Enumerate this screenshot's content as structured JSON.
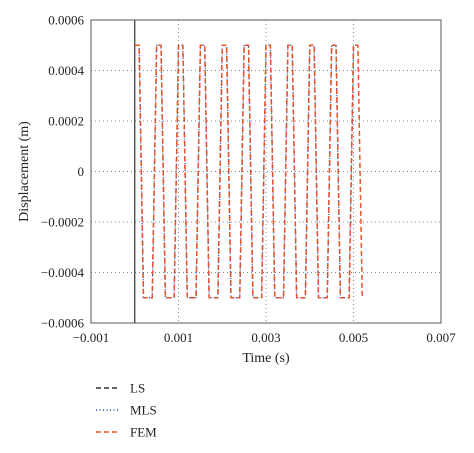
{
  "chart_data": {
    "type": "line",
    "xlabel": "Time (s)",
    "ylabel": "Displacement (m)",
    "xlim": [
      -0.001,
      0.007
    ],
    "ylim": [
      -0.0006,
      0.0006
    ],
    "x_ticks": [
      -0.001,
      0.001,
      0.003,
      0.005,
      0.007
    ],
    "x_tick_labels": [
      "−0.001",
      "0.001",
      "0.003",
      "0.005",
      "0.007"
    ],
    "y_ticks": [
      -0.0006,
      -0.0004,
      -0.0002,
      0,
      0.0002,
      0.0004,
      0.0006
    ],
    "y_tick_labels": [
      "−0.0006",
      "−0.0004",
      "−0.0002",
      "0",
      "0.0002",
      "0.0004",
      "0.0006"
    ],
    "grid": true,
    "legend_position": "bottom-left",
    "series": [
      {
        "name": "LS",
        "color": "#333333",
        "dash": "dashed",
        "x": [
          0,
          0.0001,
          0.0002,
          0.0004,
          0.0005,
          0.0006,
          0.0007,
          0.0009,
          0.001,
          0.0011,
          0.0012,
          0.0014,
          0.0015,
          0.0016,
          0.0017,
          0.0019,
          0.002,
          0.0021,
          0.0022,
          0.0024,
          0.0025,
          0.0026,
          0.0027,
          0.0029,
          0.003,
          0.0031,
          0.0032,
          0.0034,
          0.0035,
          0.0036,
          0.0037,
          0.0039,
          0.004,
          0.0041,
          0.0042,
          0.0044,
          0.0045,
          0.0046,
          0.0047,
          0.0049,
          0.005,
          0.0051
        ],
        "y": [
          0.0005,
          0.0005,
          -0.0005,
          -0.0005,
          0.0005,
          0.0005,
          -0.0005,
          -0.0005,
          0.0005,
          0.0005,
          -0.0005,
          -0.0005,
          0.0005,
          0.0005,
          -0.0005,
          -0.0005,
          0.0005,
          0.0005,
          -0.0005,
          -0.0005,
          0.0005,
          0.0005,
          -0.0005,
          -0.0005,
          0.0005,
          0.0005,
          -0.0005,
          -0.0005,
          0.0005,
          0.0005,
          -0.0005,
          -0.0005,
          0.0005,
          0.0005,
          -0.0005,
          -0.0005,
          0.0005,
          0.0005,
          -0.0005,
          -0.0005,
          0.0005,
          0.0005
        ]
      },
      {
        "name": "MLS",
        "color": "#1f4fbf",
        "dash": "dotted",
        "x": [
          0,
          0.0001,
          0.0002,
          0.0004,
          0.0005,
          0.0006,
          0.0007,
          0.0009,
          0.001,
          0.0011,
          0.0012,
          0.0014,
          0.0015,
          0.0016,
          0.0017,
          0.0019,
          0.002,
          0.0021,
          0.0022,
          0.0024,
          0.0025,
          0.0026,
          0.0027,
          0.0029,
          0.003,
          0.0031,
          0.0032,
          0.0034,
          0.0035,
          0.0036,
          0.0037,
          0.0039,
          0.004,
          0.0041,
          0.0042,
          0.0044,
          0.0045,
          0.0046,
          0.0047,
          0.0049,
          0.005,
          0.0051
        ],
        "y": [
          0.0005,
          0.0005,
          -0.0005,
          -0.0005,
          0.0005,
          0.0005,
          -0.0005,
          -0.0005,
          0.0005,
          0.0005,
          -0.0005,
          -0.0005,
          0.0005,
          0.0005,
          -0.0005,
          -0.0005,
          0.0005,
          0.0005,
          -0.0005,
          -0.0005,
          0.0005,
          0.0005,
          -0.0005,
          -0.0005,
          0.0005,
          0.0005,
          -0.0005,
          -0.0005,
          0.0005,
          0.0005,
          -0.0005,
          -0.0005,
          0.0005,
          0.0005,
          -0.0005,
          -0.0005,
          0.0005,
          0.0005,
          -0.0005,
          -0.0005,
          0.0005,
          0.0005
        ]
      },
      {
        "name": "FEM",
        "color": "#e8532b",
        "dash": "dashed",
        "x": [
          0,
          0.0001,
          0.0002,
          0.0004,
          0.0005,
          0.0006,
          0.0007,
          0.0009,
          0.001,
          0.0011,
          0.0012,
          0.0014,
          0.0015,
          0.0016,
          0.0017,
          0.0019,
          0.002,
          0.0021,
          0.0022,
          0.0024,
          0.0025,
          0.0026,
          0.0027,
          0.0029,
          0.003,
          0.0031,
          0.0032,
          0.0034,
          0.0035,
          0.0036,
          0.0037,
          0.0039,
          0.004,
          0.0041,
          0.0042,
          0.0044,
          0.0045,
          0.0046,
          0.0047,
          0.0049,
          0.005,
          0.0051,
          0.0052
        ],
        "y": [
          0.0005,
          0.0005,
          -0.0005,
          -0.0005,
          0.0005,
          0.0005,
          -0.0005,
          -0.0005,
          0.0005,
          0.0005,
          -0.0005,
          -0.0005,
          0.0005,
          0.0005,
          -0.0005,
          -0.0005,
          0.0005,
          0.0005,
          -0.0005,
          -0.0005,
          0.0005,
          0.0005,
          -0.0005,
          -0.0005,
          0.0005,
          0.0005,
          -0.0005,
          -0.0005,
          0.0005,
          0.0005,
          -0.0005,
          -0.0005,
          0.0005,
          0.0005,
          -0.0005,
          -0.0005,
          0.0005,
          0.0005,
          -0.0005,
          -0.0005,
          0.0005,
          0.0005,
          -0.0005
        ]
      }
    ]
  }
}
